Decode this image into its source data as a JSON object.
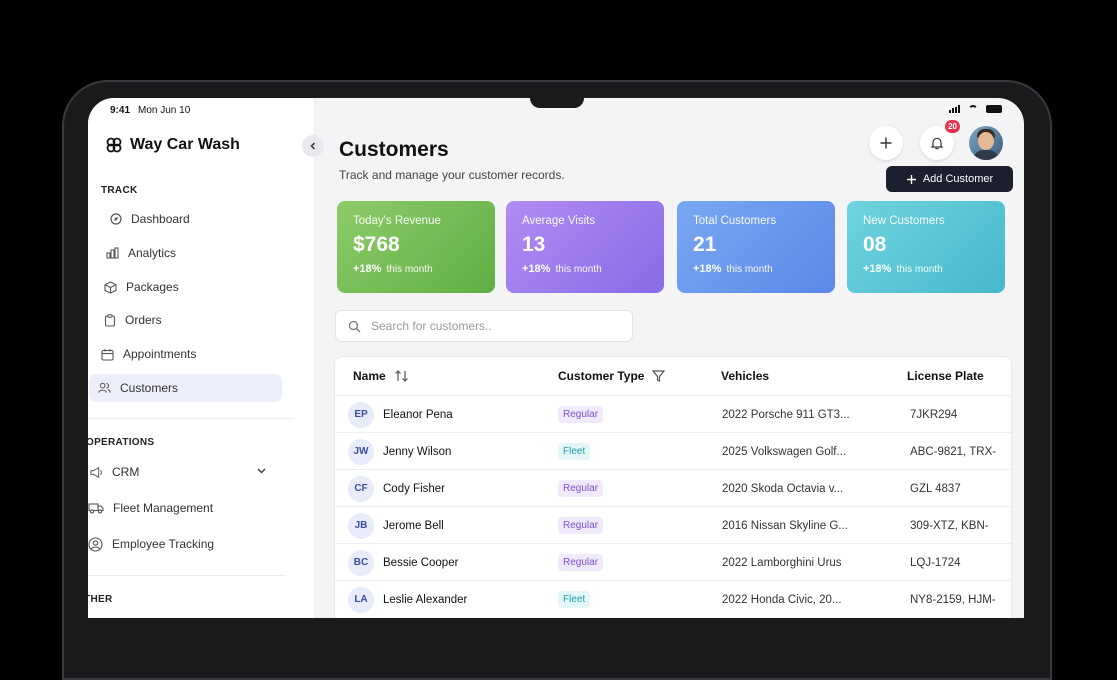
{
  "status_bar": {
    "time": "9:41",
    "date": "Mon Jun 10"
  },
  "brand": {
    "name": "Way Car Wash",
    "icon": "logo-icon"
  },
  "sidebar": {
    "sections": [
      {
        "title": "TRACK"
      },
      {
        "title": "OPERATIONS"
      },
      {
        "title": "OTHER"
      }
    ],
    "track_items": [
      {
        "label": "Dashboard",
        "icon": "compass-icon"
      },
      {
        "label": "Analytics",
        "icon": "bar-chart-icon"
      },
      {
        "label": "Packages",
        "icon": "box-icon"
      },
      {
        "label": "Orders",
        "icon": "clipboard-icon"
      },
      {
        "label": "Appointments",
        "icon": "calendar-icon"
      },
      {
        "label": "Customers",
        "icon": "users-icon",
        "active": true
      }
    ],
    "operations_items": [
      {
        "label": "CRM",
        "icon": "megaphone-icon",
        "expandable": true
      },
      {
        "label": "Fleet Management",
        "icon": "truck-icon"
      },
      {
        "label": "Employee Tracking",
        "icon": "user-circle-icon"
      }
    ]
  },
  "header": {
    "title": "Customers",
    "subtitle": "Track and manage your customer records.",
    "notification_count": "20",
    "add_customer_label": "Add Customer"
  },
  "stats": [
    {
      "label": "Today's Revenue",
      "value": "$768",
      "change": "+18%",
      "period": "this month",
      "color_from": "#8dcc68",
      "color_to": "#5fae44"
    },
    {
      "label": "Average Visits",
      "value": "13",
      "change": "+18%",
      "period": "this month",
      "color_from": "#b08cf2",
      "color_to": "#8a6be8"
    },
    {
      "label": "Total Customers",
      "value": "21",
      "change": "+18%",
      "period": "this month",
      "color_from": "#79a8f2",
      "color_to": "#5b88e8"
    },
    {
      "label": "New Customers",
      "value": "08",
      "change": "+18%",
      "period": "this month",
      "color_from": "#6fd4de",
      "color_to": "#45b9cc"
    }
  ],
  "search": {
    "placeholder": "Search for customers.."
  },
  "table": {
    "columns": [
      "Name",
      "Customer Type",
      "Vehicles",
      "License Plate"
    ],
    "rows": [
      {
        "initials": "EP",
        "name": "Eleanor Pena",
        "type": "Regular",
        "vehicle": "2022 Porsche 911 GT3...",
        "plate": "7JKR294"
      },
      {
        "initials": "JW",
        "name": "Jenny Wilson",
        "type": "Fleet",
        "vehicle": "2025 Volkswagen Golf...",
        "plate": "ABC-9821, TRX-"
      },
      {
        "initials": "CF",
        "name": "Cody Fisher",
        "type": "Regular",
        "vehicle": "2020 Skoda Octavia v...",
        "plate": "GZL 4837"
      },
      {
        "initials": "JB",
        "name": "Jerome Bell",
        "type": "Regular",
        "vehicle": "2016 Nissan Skyline G...",
        "plate": "309-XTZ, KBN-"
      },
      {
        "initials": "BC",
        "name": "Bessie Cooper",
        "type": "Regular",
        "vehicle": "2022 Lamborghini Urus",
        "plate": "LQJ-1724"
      },
      {
        "initials": "LA",
        "name": "Leslie Alexander",
        "type": "Fleet",
        "vehicle": "2022 Honda Civic, 20...",
        "plate": "NY8-2159, HJM-"
      }
    ]
  }
}
